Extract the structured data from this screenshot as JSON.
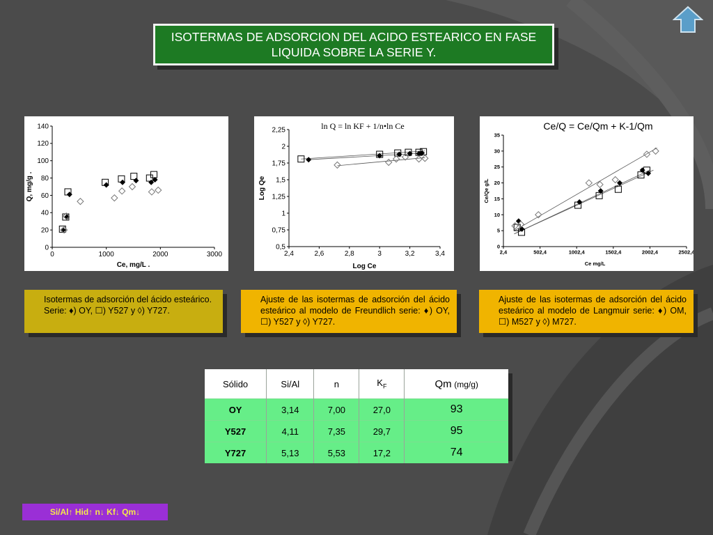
{
  "slide": {
    "title": "ISOTERMAS DE ADSORCION DEL ACIDO ESTEARICO EN FASE LIQUIDA SOBRE LA SERIE  Y.",
    "home_icon": "home-arrow-up-icon",
    "colors": {
      "title_bg": "#1d7a23",
      "caption_olive": "#c8ae10",
      "caption_gold": "#f0b400",
      "table_green": "#66ee88",
      "tag_purple": "#9a2fd6"
    }
  },
  "chart_data": [
    {
      "type": "scatter",
      "xlabel": "Ce, mg/L  .",
      "ylabel": "Q, mg/g  .",
      "xlim": [
        0,
        3000
      ],
      "ylim": [
        0,
        140
      ],
      "xticks": [
        "0",
        "1000",
        "2000",
        "3000"
      ],
      "yticks": [
        "0",
        "20",
        "40",
        "60",
        "80",
        "100",
        "120",
        "140"
      ],
      "series": [
        {
          "marker": "filled-diamond",
          "points": [
            [
              200,
              20
            ],
            [
              270,
              35
            ],
            [
              320,
              61
            ],
            [
              1000,
              72
            ],
            [
              1300,
              75
            ],
            [
              1550,
              77
            ],
            [
              1830,
              75
            ],
            [
              1900,
              78
            ]
          ]
        },
        {
          "marker": "open-square",
          "points": [
            [
              190,
              21
            ],
            [
              250,
              35
            ],
            [
              290,
              64
            ],
            [
              980,
              75
            ],
            [
              1280,
              79
            ],
            [
              1510,
              82
            ],
            [
              1800,
              80
            ],
            [
              1880,
              84
            ]
          ]
        },
        {
          "marker": "open-diamond",
          "points": [
            [
              220,
              20
            ],
            [
              260,
              36
            ],
            [
              520,
              53
            ],
            [
              1150,
              57
            ],
            [
              1290,
              65
            ],
            [
              1480,
              70
            ],
            [
              1840,
              64
            ],
            [
              1960,
              66
            ]
          ]
        }
      ]
    },
    {
      "type": "scatter",
      "title": "ln Q = ln KF + 1/n•ln Ce",
      "xlabel": "Log Ce",
      "ylabel": "Log Qe",
      "xlim": [
        2.4,
        3.4
      ],
      "ylim": [
        0.5,
        2.25
      ],
      "xticks": [
        "2,4",
        "2,6",
        "2,8",
        "3",
        "3,2",
        "3,4"
      ],
      "yticks": [
        "0,5",
        "0,75",
        "1",
        "1,25",
        "1,5",
        "1,75",
        "2",
        "2,25"
      ],
      "series": [
        {
          "marker": "filled-diamond",
          "points": [
            [
              2.53,
              1.8
            ],
            [
              3.0,
              1.86
            ],
            [
              3.13,
              1.88
            ],
            [
              3.2,
              1.89
            ],
            [
              3.26,
              1.89
            ],
            [
              3.28,
              1.9
            ]
          ]
        },
        {
          "marker": "open-square",
          "points": [
            [
              2.48,
              1.81
            ],
            [
              3.0,
              1.88
            ],
            [
              3.12,
              1.9
            ],
            [
              3.19,
              1.91
            ],
            [
              3.26,
              1.91
            ],
            [
              3.29,
              1.92
            ]
          ]
        },
        {
          "marker": "open-diamond",
          "points": [
            [
              2.72,
              1.72
            ],
            [
              3.06,
              1.76
            ],
            [
              3.11,
              1.81
            ],
            [
              3.17,
              1.84
            ],
            [
              3.26,
              1.81
            ],
            [
              3.3,
              1.82
            ]
          ]
        }
      ],
      "fits": [
        {
          "from": [
            2.53,
            1.8
          ],
          "to": [
            3.3,
            1.9
          ]
        },
        {
          "from": [
            2.48,
            1.81
          ],
          "to": [
            3.3,
            1.93
          ]
        },
        {
          "from": [
            2.72,
            1.71
          ],
          "to": [
            3.3,
            1.83
          ]
        }
      ]
    },
    {
      "type": "scatter",
      "title": "Ce/Q = Ce/Qm + K-1/Qm",
      "xlabel": "Ce mg/L",
      "ylabel": "Ce/Qe g/L",
      "xlim": [
        2.4,
        2502.4
      ],
      "ylim": [
        0,
        35
      ],
      "xticks": [
        "2,4",
        "502,4",
        "1002,4",
        "1502,4",
        "2002,4",
        "2502,4"
      ],
      "yticks": [
        "0",
        "5",
        "10",
        "15",
        "20",
        "25",
        "30",
        "35"
      ],
      "series": [
        {
          "marker": "filled-diamond",
          "points": [
            [
              210,
              8
            ],
            [
              255,
              5.5
            ],
            [
              1040,
              14
            ],
            [
              1330,
              17.5
            ],
            [
              1590,
              20
            ],
            [
              1900,
              24
            ],
            [
              1980,
              23
            ]
          ]
        },
        {
          "marker": "open-square",
          "points": [
            [
              190,
              6
            ],
            [
              250,
              4.5
            ],
            [
              1020,
              13
            ],
            [
              1310,
              16
            ],
            [
              1570,
              18
            ],
            [
              1880,
              22.5
            ],
            [
              1960,
              24
            ]
          ]
        },
        {
          "marker": "open-diamond",
          "points": [
            [
              160,
              6.5
            ],
            [
              240,
              7
            ],
            [
              480,
              10
            ],
            [
              1170,
              20
            ],
            [
              1320,
              19.5
            ],
            [
              1530,
              21
            ],
            [
              1960,
              29
            ],
            [
              2080,
              30
            ]
          ]
        }
      ],
      "fits": [
        {
          "from": [
            150,
            4
          ],
          "to": [
            2000,
            24
          ]
        },
        {
          "from": [
            150,
            4
          ],
          "to": [
            2050,
            24
          ]
        },
        {
          "from": [
            150,
            5
          ],
          "to": [
            2100,
            31
          ]
        }
      ]
    }
  ],
  "captions": [
    "Isotermas de adsorción del ácido esteárico. Serie: ♦) OY, ☐) Y527 y ◊) Y727.",
    "Ajuste de las isotermas de adsorción del ácido esteárico al modelo de Freundlich serie: ♦) OY, ☐) Y527 y ◊) Y727.",
    "Ajuste de las isotermas de adsorción del ácido esteárico al modelo de Langmuir serie: ♦) OM, ☐) M527 y ◊) M727."
  ],
  "table": {
    "headers": [
      "Sólido",
      "Si/Al",
      "n",
      "K",
      "Qm"
    ],
    "kf_subscript": "F",
    "qm_unit": "(mg/g)",
    "rows": [
      [
        "OY",
        "3,14",
        "7,00",
        "27,0",
        "93"
      ],
      [
        "Y527",
        "4,11",
        "7,35",
        "29,7",
        "95"
      ],
      [
        "Y727",
        "5,13",
        "5,53",
        "17,2",
        "74"
      ]
    ]
  },
  "footer_tag": "Si/Al↑ Hid↑ n↓ Kf↓ Qm↓"
}
